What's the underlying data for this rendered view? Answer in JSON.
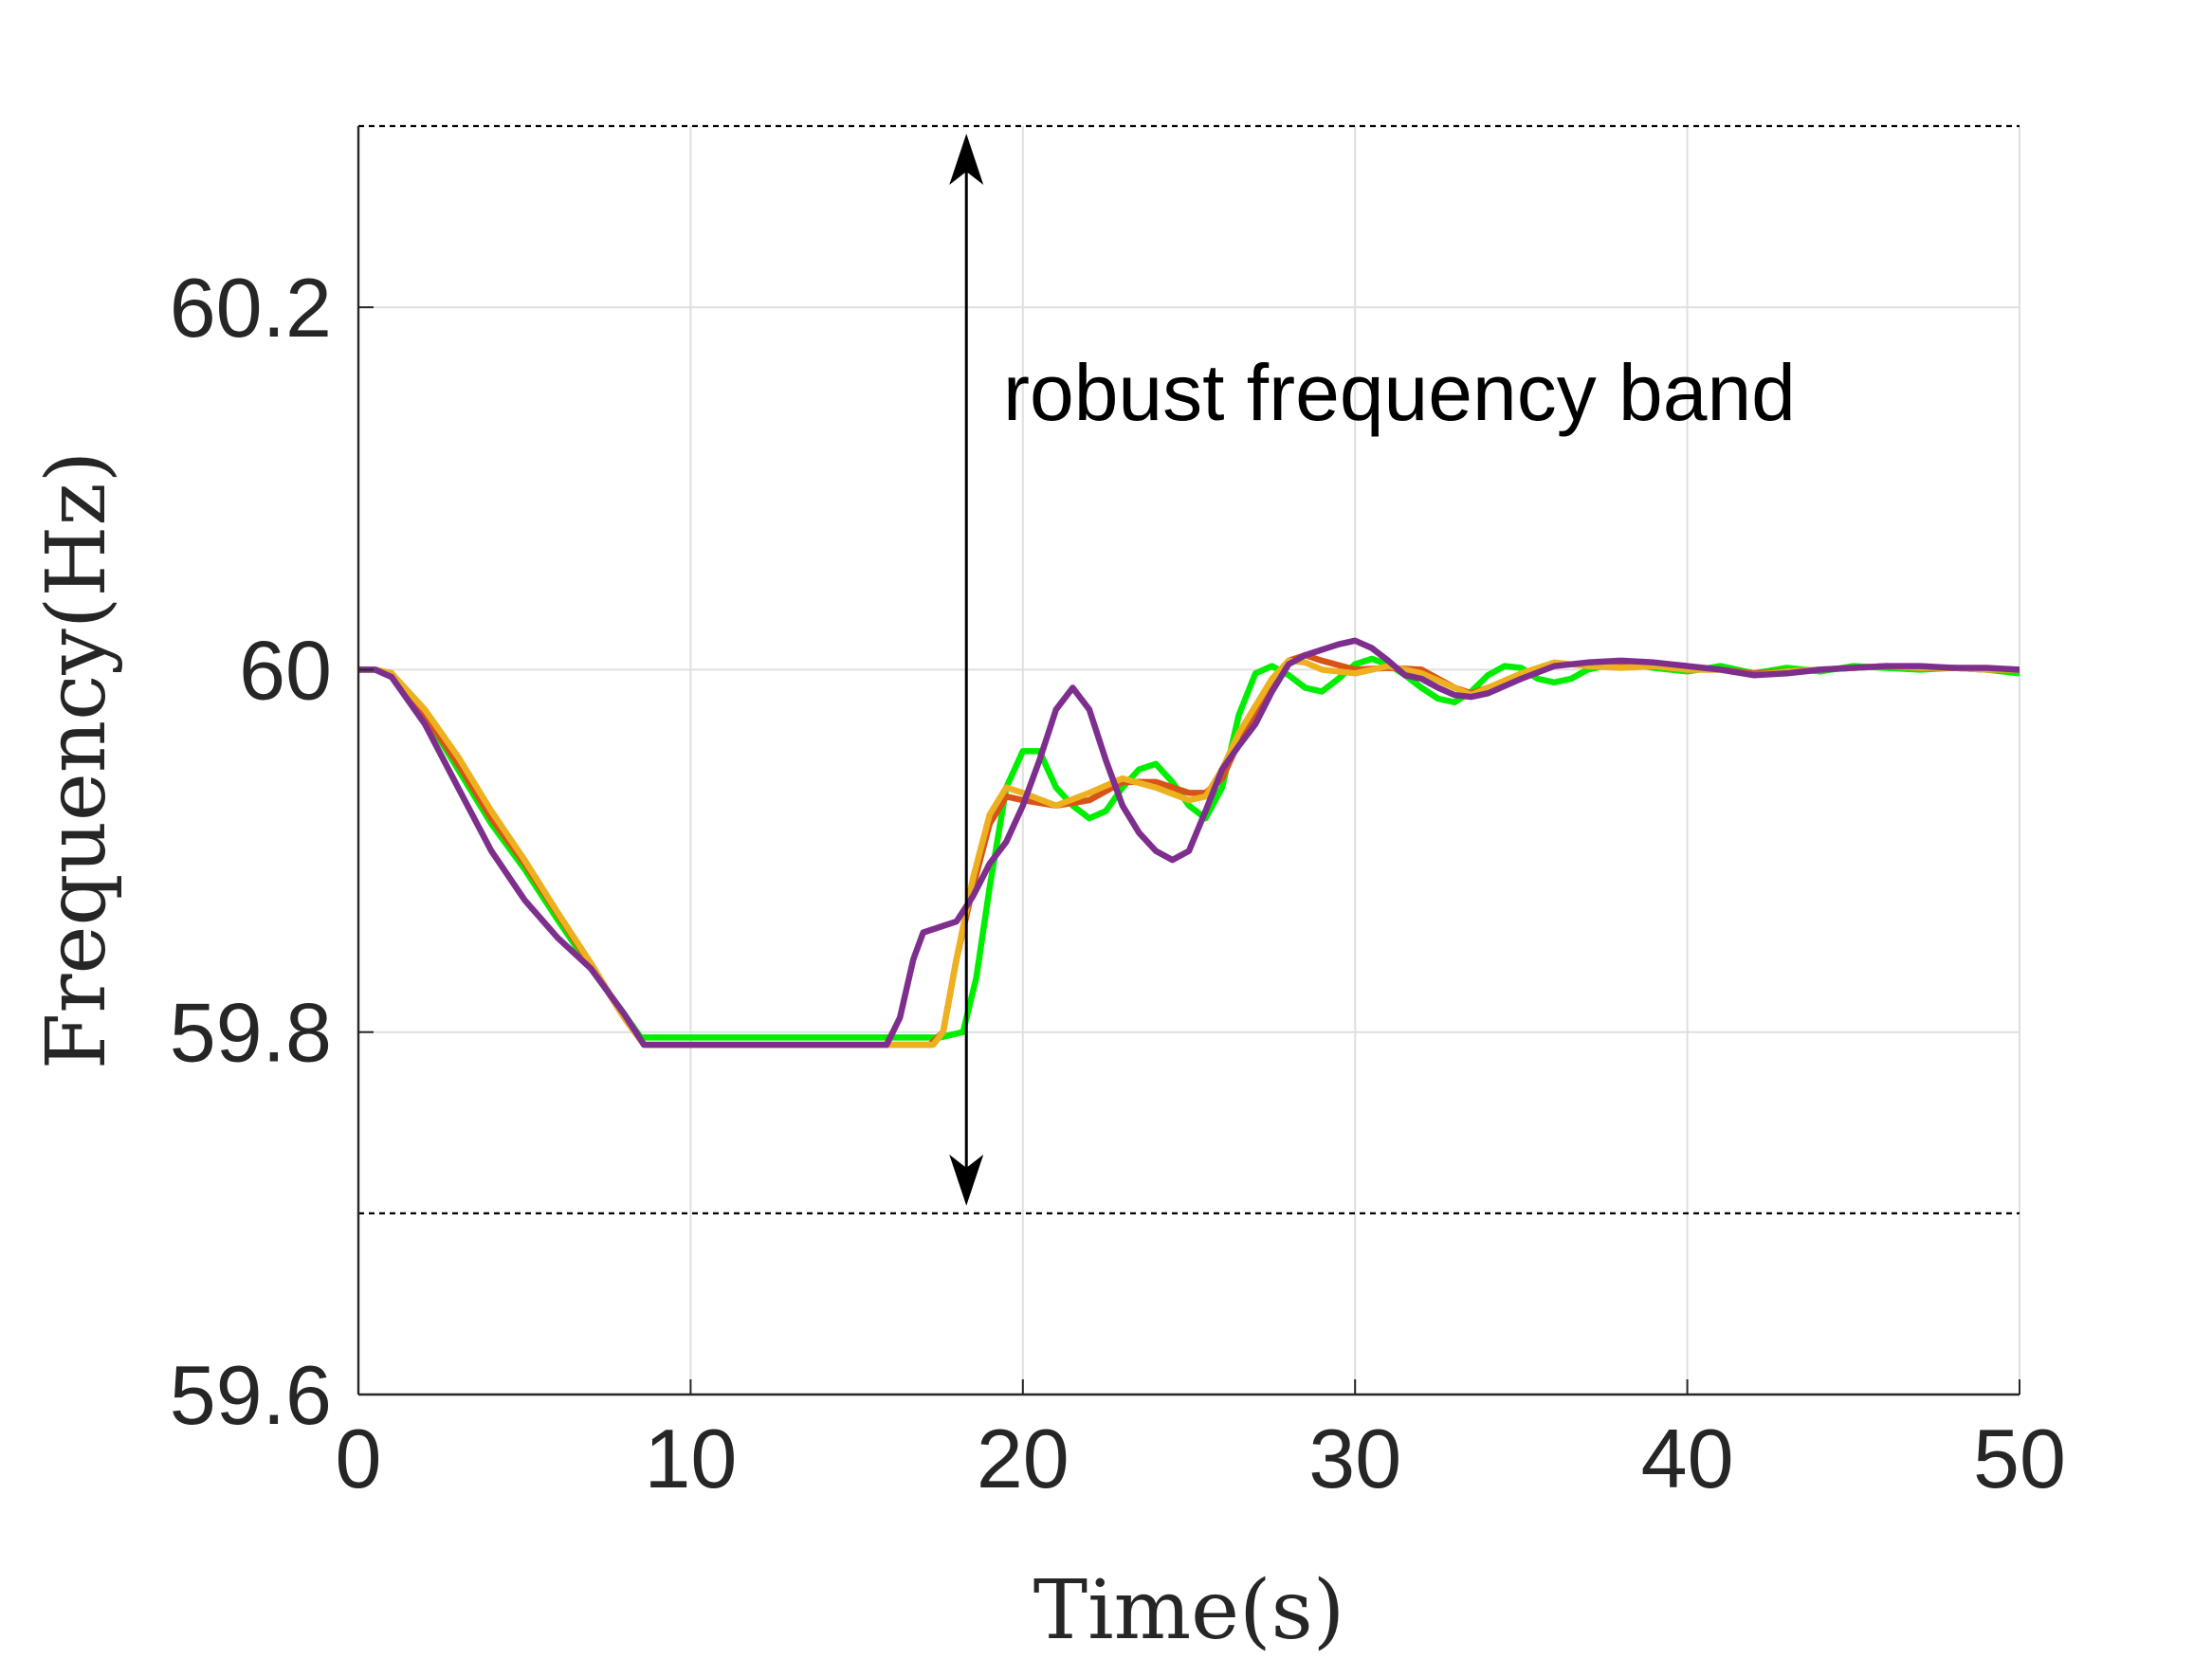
{
  "chart_data": {
    "type": "line",
    "title": "",
    "xlabel": "Time(s)",
    "ylabel": "Frequency(Hz)",
    "xlim": [
      0,
      50
    ],
    "ylim": [
      59.6,
      60.3
    ],
    "xticks": [
      "0",
      "10",
      "20",
      "30",
      "40",
      "50"
    ],
    "yticks": [
      "59.6",
      "59.8",
      "60",
      "60.2"
    ],
    "grid": true,
    "legend": "none",
    "band": {
      "lower": 59.7,
      "upper": 60.3
    },
    "annotation": {
      "text": "robust frequency band",
      "x": 18.3
    },
    "series": [
      {
        "color": "#00ee00",
        "points": [
          [
            0,
            60
          ],
          [
            0.5,
            60
          ],
          [
            1,
            59.998
          ],
          [
            2,
            59.975
          ],
          [
            3,
            59.945
          ],
          [
            4,
            59.915
          ],
          [
            5,
            59.89
          ],
          [
            6,
            59.862
          ],
          [
            7,
            59.835
          ],
          [
            8,
            59.81
          ],
          [
            8.5,
            59.797
          ],
          [
            12,
            59.797
          ],
          [
            16,
            59.797
          ],
          [
            17.5,
            59.797
          ],
          [
            18.2,
            59.8
          ],
          [
            18.6,
            59.83
          ],
          [
            19,
            59.88
          ],
          [
            19.5,
            59.935
          ],
          [
            20,
            59.955
          ],
          [
            20.5,
            59.955
          ],
          [
            21,
            59.935
          ],
          [
            21.5,
            59.925
          ],
          [
            22,
            59.918
          ],
          [
            22.5,
            59.922
          ],
          [
            23,
            59.935
          ],
          [
            23.5,
            59.945
          ],
          [
            24,
            59.948
          ],
          [
            24.5,
            59.938
          ],
          [
            25,
            59.925
          ],
          [
            25.5,
            59.918
          ],
          [
            26,
            59.935
          ],
          [
            26.5,
            59.975
          ],
          [
            27,
            59.998
          ],
          [
            27.5,
            60.002
          ],
          [
            28,
            59.997
          ],
          [
            28.5,
            59.99
          ],
          [
            29,
            59.988
          ],
          [
            29.5,
            59.995
          ],
          [
            30,
            60.003
          ],
          [
            30.5,
            60.006
          ],
          [
            31,
            60.003
          ],
          [
            31.5,
            59.997
          ],
          [
            32,
            59.99
          ],
          [
            32.5,
            59.984
          ],
          [
            33,
            59.982
          ],
          [
            33.5,
            59.988
          ],
          [
            34,
            59.997
          ],
          [
            34.5,
            60.002
          ],
          [
            35,
            60.001
          ],
          [
            35.5,
            59.995
          ],
          [
            36,
            59.993
          ],
          [
            36.5,
            59.995
          ],
          [
            37,
            60
          ],
          [
            38,
            60.004
          ],
          [
            39,
            60.001
          ],
          [
            40,
            59.999
          ],
          [
            41,
            60.002
          ],
          [
            42,
            59.998
          ],
          [
            43,
            60.001
          ],
          [
            44,
            59.999
          ],
          [
            45,
            60.002
          ],
          [
            46,
            60.001
          ],
          [
            47,
            60
          ],
          [
            48,
            60.001
          ],
          [
            49,
            60
          ],
          [
            50,
            59.998
          ]
        ]
      },
      {
        "color": "#d95319",
        "points": [
          [
            0,
            60
          ],
          [
            0.5,
            60
          ],
          [
            1,
            59.998
          ],
          [
            2,
            59.975
          ],
          [
            3,
            59.948
          ],
          [
            4,
            59.918
          ],
          [
            5,
            59.893
          ],
          [
            6,
            59.865
          ],
          [
            7,
            59.837
          ],
          [
            8,
            59.808
          ],
          [
            8.6,
            59.793
          ],
          [
            12,
            59.793
          ],
          [
            16,
            59.793
          ],
          [
            17.2,
            59.793
          ],
          [
            17.6,
            59.8
          ],
          [
            18,
            59.84
          ],
          [
            18.5,
            59.88
          ],
          [
            19,
            59.915
          ],
          [
            19.5,
            59.93
          ],
          [
            20,
            59.928
          ],
          [
            21,
            59.925
          ],
          [
            22,
            59.928
          ],
          [
            23,
            59.938
          ],
          [
            24,
            59.938
          ],
          [
            25,
            59.932
          ],
          [
            25.5,
            59.932
          ],
          [
            26,
            59.94
          ],
          [
            26.5,
            59.96
          ],
          [
            27,
            59.975
          ],
          [
            27.5,
            59.99
          ],
          [
            28,
            60.005
          ],
          [
            28.5,
            60.008
          ],
          [
            29,
            60.005
          ],
          [
            30,
            60
          ],
          [
            31,
            60.001
          ],
          [
            32,
            60
          ],
          [
            33,
            59.99
          ],
          [
            33.5,
            59.987
          ],
          [
            34,
            59.99
          ],
          [
            35,
            59.997
          ],
          [
            36,
            60.003
          ],
          [
            37,
            60.003
          ],
          [
            38,
            60.002
          ],
          [
            39,
            60.002
          ],
          [
            40,
            60
          ],
          [
            41,
            60
          ],
          [
            42,
            59.998
          ],
          [
            43,
            59.999
          ],
          [
            44,
            60
          ],
          [
            45,
            60.001
          ],
          [
            46,
            60.002
          ],
          [
            47,
            60.001
          ],
          [
            48,
            60.001
          ],
          [
            49,
            60
          ],
          [
            50,
            60
          ]
        ]
      },
      {
        "color": "#edb120",
        "points": [
          [
            0,
            60
          ],
          [
            0.5,
            60
          ],
          [
            1,
            59.998
          ],
          [
            2,
            59.978
          ],
          [
            3,
            59.952
          ],
          [
            4,
            59.922
          ],
          [
            5,
            59.895
          ],
          [
            6,
            59.866
          ],
          [
            7,
            59.838
          ],
          [
            8,
            59.808
          ],
          [
            8.6,
            59.793
          ],
          [
            12,
            59.793
          ],
          [
            16,
            59.793
          ],
          [
            17.3,
            59.793
          ],
          [
            17.6,
            59.8
          ],
          [
            18,
            59.84
          ],
          [
            18.5,
            59.885
          ],
          [
            19,
            59.92
          ],
          [
            19.5,
            59.935
          ],
          [
            20,
            59.932
          ],
          [
            21,
            59.925
          ],
          [
            22,
            59.932
          ],
          [
            23,
            59.94
          ],
          [
            24,
            59.935
          ],
          [
            25,
            59.928
          ],
          [
            25.5,
            59.93
          ],
          [
            26,
            59.945
          ],
          [
            26.5,
            59.965
          ],
          [
            27,
            59.98
          ],
          [
            27.5,
            59.995
          ],
          [
            28,
            60.005
          ],
          [
            28.5,
            60.004
          ],
          [
            29,
            60
          ],
          [
            30,
            59.998
          ],
          [
            31,
            60.002
          ],
          [
            32,
            59.998
          ],
          [
            33,
            59.99
          ],
          [
            33.5,
            59.986
          ],
          [
            34,
            59.99
          ],
          [
            35,
            59.998
          ],
          [
            36,
            60.004
          ],
          [
            37,
            60.002
          ],
          [
            38,
            60.001
          ],
          [
            39,
            60.002
          ],
          [
            40,
            60
          ],
          [
            41,
            60
          ],
          [
            42,
            59.997
          ],
          [
            43,
            59.999
          ],
          [
            44,
            60
          ],
          [
            45,
            60.001
          ],
          [
            46,
            60.002
          ],
          [
            47,
            60.001
          ],
          [
            48,
            60.001
          ],
          [
            49,
            60
          ],
          [
            50,
            60
          ]
        ]
      },
      {
        "color": "#7e2f8e",
        "points": [
          [
            0,
            60
          ],
          [
            0.5,
            60
          ],
          [
            1,
            59.996
          ],
          [
            2,
            59.97
          ],
          [
            3,
            59.935
          ],
          [
            4,
            59.9
          ],
          [
            5,
            59.873
          ],
          [
            6,
            59.852
          ],
          [
            7,
            59.835
          ],
          [
            8,
            59.81
          ],
          [
            8.6,
            59.793
          ],
          [
            12,
            59.793
          ],
          [
            15.9,
            59.793
          ],
          [
            16.3,
            59.808
          ],
          [
            16.7,
            59.84
          ],
          [
            17,
            59.855
          ],
          [
            17.5,
            59.858
          ],
          [
            18,
            59.861
          ],
          [
            18.5,
            59.875
          ],
          [
            19,
            59.893
          ],
          [
            19.5,
            59.905
          ],
          [
            20,
            59.925
          ],
          [
            20.5,
            59.95
          ],
          [
            21,
            59.978
          ],
          [
            21.5,
            59.99
          ],
          [
            22,
            59.978
          ],
          [
            22.5,
            59.95
          ],
          [
            23,
            59.925
          ],
          [
            23.5,
            59.91
          ],
          [
            24,
            59.9
          ],
          [
            24.5,
            59.895
          ],
          [
            25,
            59.9
          ],
          [
            25.5,
            59.922
          ],
          [
            26,
            59.945
          ],
          [
            26.5,
            59.958
          ],
          [
            27,
            59.97
          ],
          [
            27.5,
            59.988
          ],
          [
            28,
            60.003
          ],
          [
            28.5,
            60.008
          ],
          [
            29,
            60.011
          ],
          [
            29.5,
            60.014
          ],
          [
            30,
            60.016
          ],
          [
            30.5,
            60.012
          ],
          [
            31,
            60.005
          ],
          [
            31.5,
            59.997
          ],
          [
            32,
            59.995
          ],
          [
            32.5,
            59.99
          ],
          [
            33,
            59.986
          ],
          [
            33.5,
            59.985
          ],
          [
            34,
            59.987
          ],
          [
            35,
            59.995
          ],
          [
            36,
            60.002
          ],
          [
            37,
            60.004
          ],
          [
            38,
            60.005
          ],
          [
            39,
            60.004
          ],
          [
            40,
            60.002
          ],
          [
            41,
            60
          ],
          [
            42,
            59.997
          ],
          [
            43,
            59.998
          ],
          [
            44,
            60
          ],
          [
            45,
            60.001
          ],
          [
            46,
            60.002
          ],
          [
            47,
            60.002
          ],
          [
            48,
            60.001
          ],
          [
            49,
            60.001
          ],
          [
            50,
            60
          ]
        ]
      }
    ]
  }
}
